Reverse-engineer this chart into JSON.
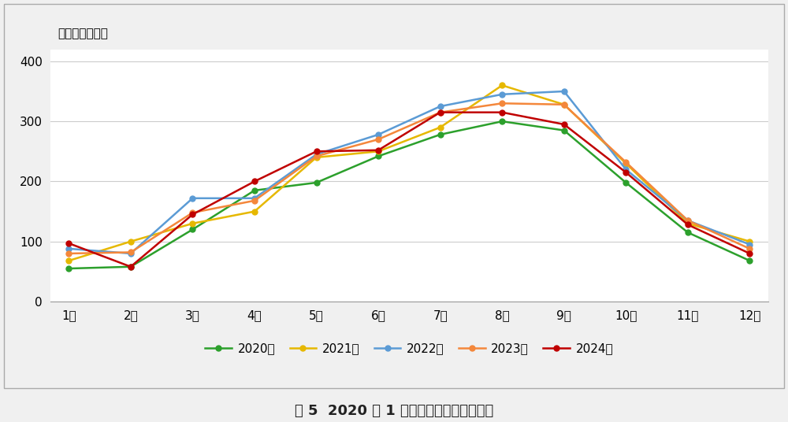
{
  "months": [
    "1月",
    "2月",
    "3月",
    "4月",
    "5月",
    "6月",
    "7月",
    "8月",
    "9月",
    "10月",
    "11月",
    "12月"
  ],
  "series_order": [
    "2020年",
    "2021年",
    "2022年",
    "2023年",
    "2024年"
  ],
  "series": {
    "2020年": [
      55,
      58,
      120,
      185,
      198,
      242,
      278,
      300,
      285,
      198,
      115,
      68
    ],
    "2021年": [
      68,
      100,
      130,
      150,
      240,
      250,
      290,
      360,
      328,
      230,
      130,
      100
    ],
    "2022年": [
      88,
      80,
      172,
      172,
      245,
      278,
      325,
      345,
      350,
      220,
      135,
      95
    ],
    "2023年": [
      80,
      82,
      148,
      168,
      242,
      270,
      315,
      330,
      328,
      232,
      135,
      88
    ],
    "2024年": [
      97,
      58,
      145,
      200,
      250,
      252,
      315,
      315,
      295,
      215,
      128,
      80
    ]
  },
  "colors": {
    "2020年": "#2ca02c",
    "2021年": "#e6b800",
    "2022年": "#5b9bd5",
    "2023年": "#f4873b",
    "2024年": "#c00000"
  },
  "ylim": [
    0,
    420
  ],
  "yticks": [
    0,
    100,
    200,
    300,
    400
  ],
  "ylabel": "水产饲料，万吨",
  "caption": "图 5  2020 年 1 月以来水产饲料产量变化",
  "outer_bg_color": "#f0f0f0",
  "plot_bg_color": "#ffffff",
  "grid_color": "#cccccc",
  "border_color": "#999999",
  "marker": "o",
  "marker_size": 5,
  "linewidth": 1.8
}
